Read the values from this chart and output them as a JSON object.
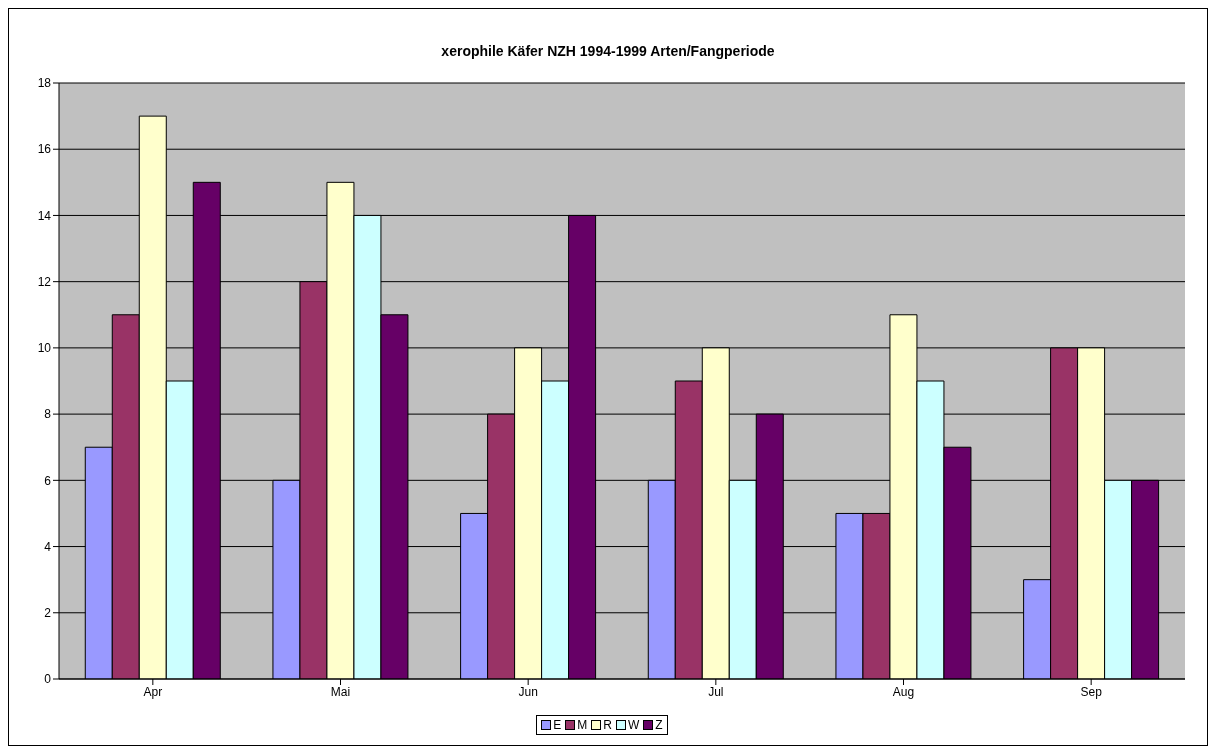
{
  "chart_data": {
    "type": "bar",
    "title": "xerophile Käfer NZH 1994-1999 Arten/Fangperiode",
    "categories": [
      "Apr",
      "Mai",
      "Jun",
      "Jul",
      "Aug",
      "Sep"
    ],
    "series": [
      {
        "name": "E",
        "color": "#9999ff",
        "values": [
          7,
          6,
          5,
          6,
          5,
          3
        ]
      },
      {
        "name": "M",
        "color": "#993366",
        "values": [
          11,
          12,
          8,
          9,
          5,
          10
        ]
      },
      {
        "name": "R",
        "color": "#ffffcc",
        "values": [
          17,
          15,
          10,
          10,
          11,
          10
        ]
      },
      {
        "name": "W",
        "color": "#ccffff",
        "values": [
          9,
          14,
          9,
          6,
          9,
          6
        ]
      },
      {
        "name": "Z",
        "color": "#660066",
        "values": [
          15,
          11,
          14,
          8,
          7,
          6
        ]
      }
    ],
    "ylim": [
      0,
      18
    ],
    "yticks": [
      0,
      2,
      4,
      6,
      8,
      10,
      12,
      14,
      16,
      18
    ],
    "grid": "y",
    "legend": "bottom"
  }
}
